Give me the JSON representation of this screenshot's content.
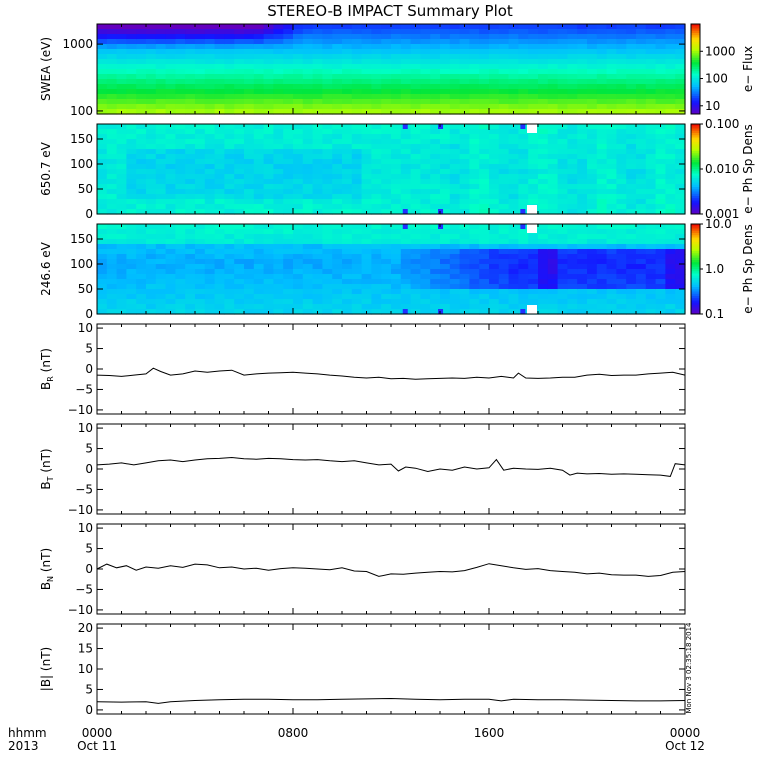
{
  "title": "STEREO-B IMPACT Summary Plot",
  "stamp": "Mon Nov 3 02:35:18 2014",
  "time_axis": {
    "row_label_1": "hhmm",
    "row_label_2": "2013",
    "ticks": [
      {
        "hour": 0,
        "label": "0000",
        "date": "Oct 11"
      },
      {
        "hour": 8,
        "label": "0800",
        "date": ""
      },
      {
        "hour": 16,
        "label": "1600",
        "date": ""
      },
      {
        "hour": 24,
        "label": "0000",
        "date": "Oct 12"
      }
    ],
    "range_hours": [
      0,
      24
    ]
  },
  "chart_data": [
    {
      "type": "heatmap",
      "id": "swea",
      "ylabel": "SWEA (eV)",
      "ylog": true,
      "ylim": [
        90,
        2000
      ],
      "yticks": [
        100,
        1000
      ],
      "yticklabels": [
        "100",
        "1000"
      ],
      "colorbar": {
        "label": "e− Flux",
        "log": true,
        "range": [
          5,
          10000
        ],
        "ticks": [
          10,
          100,
          1000
        ],
        "ticklabels": [
          "10",
          "100",
          "1000"
        ]
      }
    },
    {
      "type": "heatmap",
      "id": "pad650",
      "ylabel": "650.7 eV",
      "ylim": [
        0,
        180
      ],
      "yticks": [
        0,
        50,
        100,
        150
      ],
      "yticklabels": [
        "0",
        "50",
        "100",
        "150"
      ],
      "colorbar": {
        "label": "e− Ph Sp Dens",
        "log": true,
        "range": [
          0.001,
          0.1
        ],
        "ticks": [
          0.001,
          0.01,
          0.1
        ],
        "ticklabels": [
          "0.001",
          "0.010",
          "0.100"
        ]
      }
    },
    {
      "type": "heatmap",
      "id": "pad246",
      "ylabel": "246.6 eV",
      "ylim": [
        0,
        180
      ],
      "yticks": [
        0,
        50,
        100,
        150
      ],
      "yticklabels": [
        "0",
        "50",
        "100",
        "150"
      ],
      "colorbar": {
        "label": "e− Ph Sp Dens",
        "log": true,
        "range": [
          0.1,
          10
        ],
        "ticks": [
          0.1,
          1,
          10
        ],
        "ticklabels": [
          "0.1",
          "1.0",
          "10.0"
        ]
      }
    },
    {
      "type": "line",
      "id": "br",
      "ylabel_main": "B",
      "ylabel_sub": "R",
      "ylabel_unit": " (nT)",
      "ylim": [
        -11,
        11
      ],
      "yticks": [
        -10,
        -5,
        0,
        5,
        10
      ],
      "yticklabels": [
        "−10",
        "−5",
        "0",
        "5",
        "10"
      ],
      "x": [
        0,
        0.5,
        1,
        1.5,
        2,
        2.3,
        2.6,
        3,
        3.5,
        4,
        4.5,
        5,
        5.5,
        6,
        6.5,
        7,
        7.5,
        8,
        8.5,
        9,
        9.5,
        10,
        10.5,
        11,
        11.5,
        12,
        12.5,
        13,
        13.5,
        14,
        14.5,
        15,
        15.5,
        16,
        16.5,
        17,
        17.2,
        17.5,
        18,
        18.5,
        19,
        19.5,
        20,
        20.5,
        21,
        21.5,
        22,
        22.5,
        23,
        23.5,
        24
      ],
      "y": [
        -1.5,
        -1.6,
        -1.8,
        -1.5,
        -1.2,
        0.2,
        -0.6,
        -1.5,
        -1.2,
        -0.5,
        -0.8,
        -0.5,
        -0.3,
        -1.5,
        -1.2,
        -1.0,
        -0.9,
        -0.8,
        -1.0,
        -1.2,
        -1.5,
        -1.7,
        -2.0,
        -2.2,
        -2.0,
        -2.4,
        -2.3,
        -2.5,
        -2.4,
        -2.3,
        -2.2,
        -2.3,
        -2.0,
        -2.2,
        -1.8,
        -2.2,
        -1.0,
        -2.2,
        -2.3,
        -2.2,
        -2.0,
        -2.0,
        -1.5,
        -1.3,
        -1.6,
        -1.5,
        -1.5,
        -1.2,
        -1.0,
        -0.8,
        -1.5
      ]
    },
    {
      "type": "line",
      "id": "bt",
      "ylabel_main": "B",
      "ylabel_sub": "T",
      "ylabel_unit": " (nT)",
      "ylim": [
        -11,
        11
      ],
      "yticks": [
        -10,
        -5,
        0,
        5,
        10
      ],
      "yticklabels": [
        "−10",
        "−5",
        "0",
        "5",
        "10"
      ],
      "x": [
        0,
        0.5,
        1,
        1.5,
        2,
        2.5,
        3,
        3.5,
        4,
        4.5,
        5,
        5.5,
        6,
        6.5,
        7,
        7.5,
        8,
        8.5,
        9,
        9.5,
        10,
        10.5,
        11,
        11.5,
        12,
        12.3,
        12.6,
        13,
        13.5,
        14,
        14.5,
        15,
        15.5,
        16,
        16.3,
        16.6,
        17,
        17.5,
        18,
        18.5,
        19,
        19.3,
        19.6,
        20,
        20.5,
        21,
        21.5,
        22,
        22.5,
        23,
        23.4,
        23.6,
        24
      ],
      "y": [
        1.0,
        1.2,
        1.5,
        1.0,
        1.5,
        2.0,
        2.2,
        1.8,
        2.2,
        2.5,
        2.6,
        2.8,
        2.5,
        2.4,
        2.6,
        2.5,
        2.3,
        2.2,
        2.3,
        2.0,
        1.8,
        2.0,
        1.5,
        1.0,
        1.2,
        -0.5,
        0.5,
        0.2,
        -0.6,
        0.0,
        -0.3,
        0.5,
        0.0,
        0.3,
        2.3,
        -0.3,
        0.2,
        0.0,
        -0.1,
        0.2,
        -0.3,
        -1.5,
        -1.0,
        -1.2,
        -1.1,
        -1.3,
        -1.2,
        -1.3,
        -1.4,
        -1.5,
        -1.8,
        1.3,
        1.0
      ]
    },
    {
      "type": "line",
      "id": "bn",
      "ylabel_main": "B",
      "ylabel_sub": "N",
      "ylabel_unit": " (nT)",
      "ylim": [
        -11,
        11
      ],
      "yticks": [
        -10,
        -5,
        0,
        5,
        10
      ],
      "yticklabels": [
        "−10",
        "−5",
        "0",
        "5",
        "10"
      ],
      "x": [
        0,
        0.4,
        0.8,
        1.2,
        1.6,
        2,
        2.5,
        3,
        3.5,
        4,
        4.5,
        5,
        5.5,
        6,
        6.5,
        7,
        7.5,
        8,
        8.5,
        9,
        9.5,
        10,
        10.5,
        11,
        11.5,
        12,
        12.5,
        13,
        13.5,
        14,
        14.5,
        15,
        15.5,
        16,
        16.5,
        17,
        17.5,
        18,
        18.5,
        19,
        19.5,
        20,
        20.5,
        21,
        21.5,
        22,
        22.5,
        23,
        23.5,
        24
      ],
      "y": [
        0.0,
        1.2,
        0.3,
        0.8,
        -0.3,
        0.5,
        0.2,
        0.8,
        0.4,
        1.2,
        1.0,
        0.3,
        0.5,
        0.0,
        0.2,
        -0.3,
        0.1,
        0.3,
        0.2,
        0.0,
        -0.2,
        0.3,
        -0.5,
        -0.6,
        -1.8,
        -1.2,
        -1.3,
        -1.0,
        -0.8,
        -0.6,
        -0.7,
        -0.4,
        0.4,
        1.3,
        0.8,
        0.3,
        -0.1,
        0.1,
        -0.4,
        -0.6,
        -0.8,
        -1.2,
        -1.0,
        -1.4,
        -1.5,
        -1.5,
        -1.8,
        -1.6,
        -0.8,
        -0.6
      ]
    },
    {
      "type": "line",
      "id": "bmag",
      "ylabel_main": "|B| (nT)",
      "ylim": [
        -1,
        21
      ],
      "yticks": [
        0,
        5,
        10,
        15,
        20
      ],
      "yticklabels": [
        "0",
        "5",
        "10",
        "15",
        "20"
      ],
      "x": [
        0,
        1,
        2,
        2.5,
        3,
        4,
        5,
        6,
        7,
        8,
        9,
        10,
        11,
        12,
        13,
        14,
        15,
        16,
        16.5,
        17,
        18,
        19,
        20,
        21,
        22,
        23,
        24
      ],
      "y": [
        2.0,
        1.9,
        2.0,
        1.6,
        2.0,
        2.3,
        2.5,
        2.6,
        2.6,
        2.5,
        2.5,
        2.6,
        2.7,
        2.8,
        2.6,
        2.5,
        2.6,
        2.6,
        2.2,
        2.6,
        2.5,
        2.5,
        2.4,
        2.3,
        2.2,
        2.2,
        2.3
      ]
    }
  ]
}
